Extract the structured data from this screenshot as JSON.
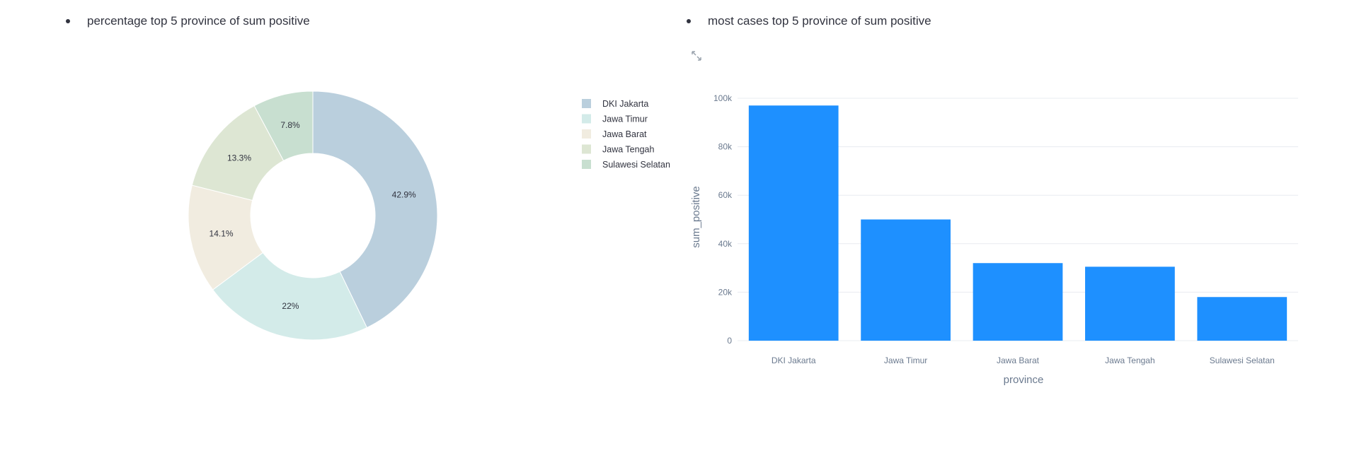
{
  "left_section": {
    "heading": "percentage top 5 province of sum positive"
  },
  "right_section": {
    "heading": "most cases top 5 province of sum positive",
    "expand_icon": "expand-icon"
  },
  "colors": {
    "bar": "#1e90ff",
    "text": "#31333f",
    "axis_text": "#6b7a8f",
    "grid": "#e8ecf0"
  },
  "chart_data": [
    {
      "type": "pie",
      "style": "donut",
      "labels": [
        "DKI Jakarta",
        "Jawa Timur",
        "Jawa Barat",
        "Jawa Tengah",
        "Sulawesi Selatan"
      ],
      "values": [
        42.9,
        22,
        14.1,
        13.3,
        7.8
      ],
      "value_labels": [
        "42.9%",
        "22%",
        "14.1%",
        "13.3%",
        "7.8%"
      ],
      "colors": [
        "#bacfdd",
        "#d3ebe9",
        "#f1ece0",
        "#dde6d3",
        "#c8dfd0"
      ],
      "legend_position": "right"
    },
    {
      "type": "bar",
      "categories": [
        "DKI Jakarta",
        "Jawa Timur",
        "Jawa Barat",
        "Jawa Tengah",
        "Sulawesi Selatan"
      ],
      "values": [
        97000,
        50000,
        32000,
        30500,
        18000
      ],
      "xlabel": "province",
      "ylabel": "sum_positive",
      "ylim": [
        0,
        100000
      ],
      "yticks": [
        0,
        20000,
        40000,
        60000,
        80000,
        100000
      ],
      "ytick_labels": [
        "0",
        "20k",
        "40k",
        "60k",
        "80k",
        "100k"
      ],
      "grid": true
    }
  ]
}
